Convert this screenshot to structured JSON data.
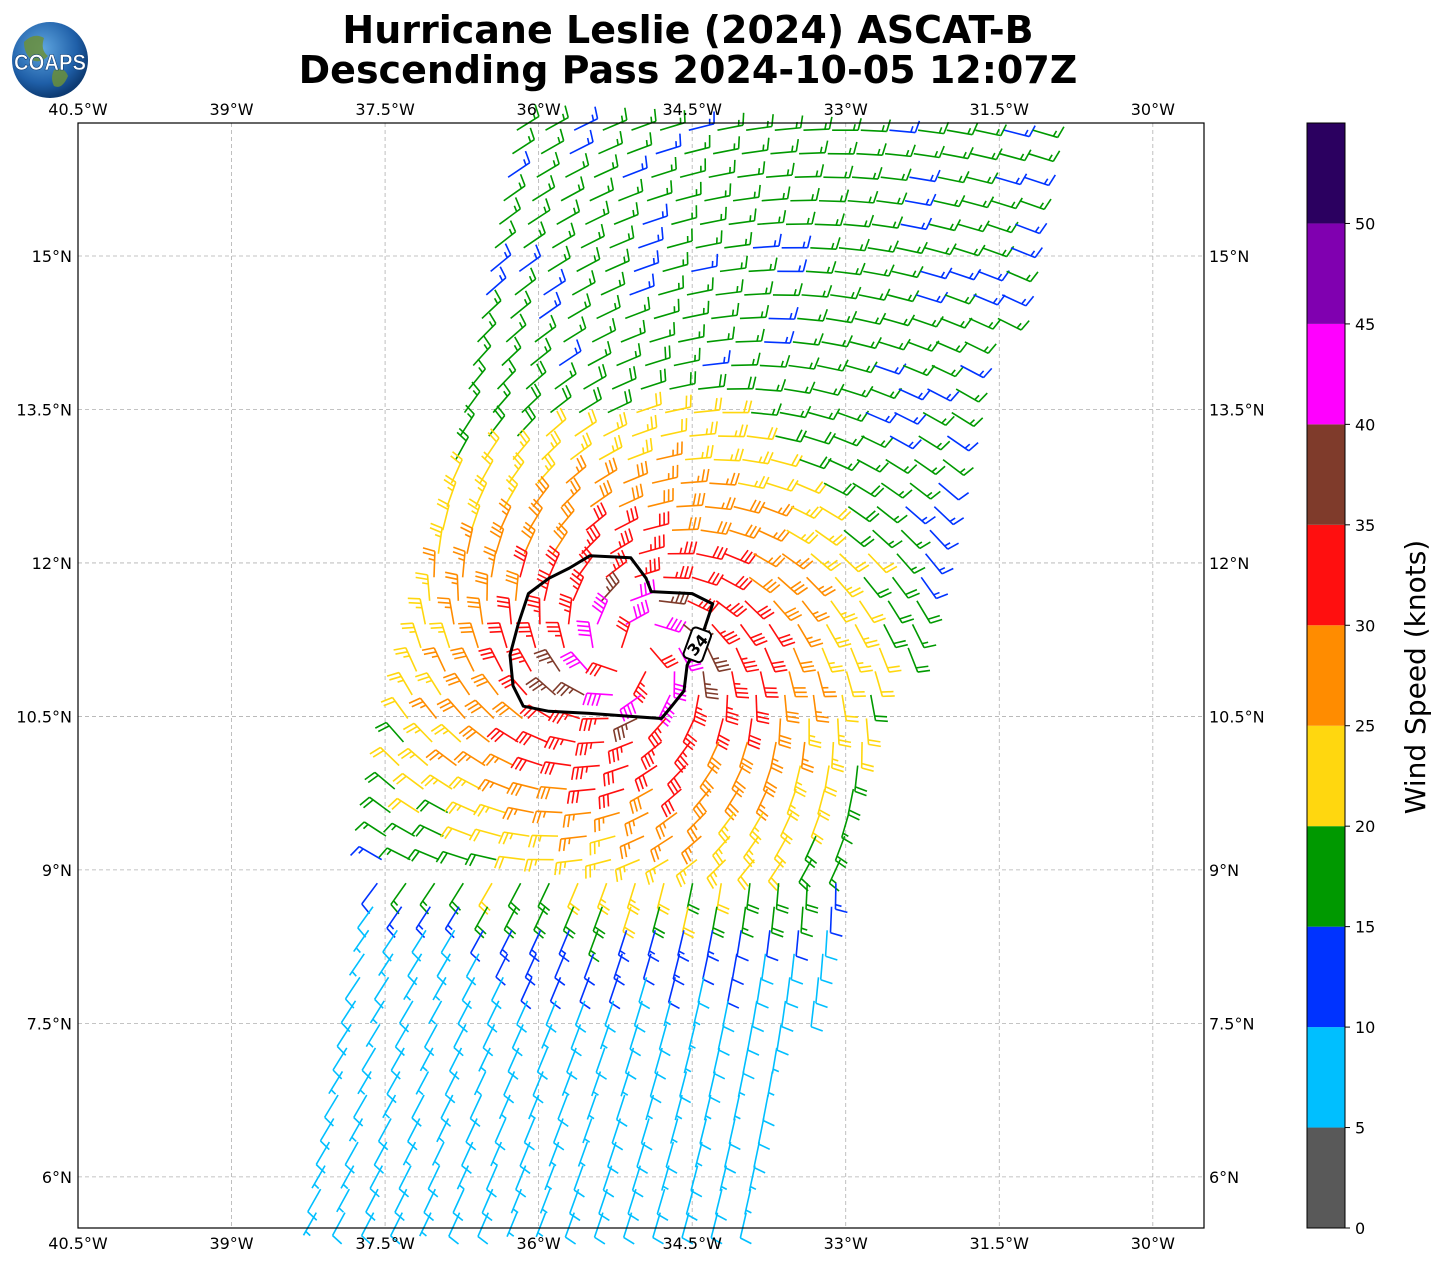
{
  "chart_data": {
    "type": "scatter",
    "title": "Hurricane Leslie (2024) ASCAT-B",
    "subtitle": "Descending Pass 2024-10-05 12:07Z",
    "logo_text": "COAPS",
    "x_ticks": [
      "40.5°W",
      "39°W",
      "37.5°W",
      "36°W",
      "34.5°W",
      "33°W",
      "31.5°W",
      "30°W"
    ],
    "x_tick_values": [
      -40.5,
      -39,
      -37.5,
      -36,
      -34.5,
      -33,
      -31.5,
      -30
    ],
    "y_ticks": [
      "6°N",
      "7.5°N",
      "9°N",
      "10.5°N",
      "12°N",
      "13.5°N",
      "15°N"
    ],
    "y_tick_values": [
      6,
      7.5,
      9,
      10.5,
      12,
      13.5,
      15
    ],
    "xlim": [
      -40.5,
      -29.5
    ],
    "ylim": [
      5.5,
      16.3
    ],
    "grid": true,
    "contour_label": "34",
    "center": {
      "lon": -35.1,
      "lat": 11.1
    },
    "swath": {
      "west_top_lon": -36.2,
      "east_top_lon": -31.0,
      "west_bottom_lon": -38.2,
      "east_bottom_lon": -33.9
    },
    "contour_34kt": [
      [
        -35.5,
        12.07
      ],
      [
        -35.1,
        12.05
      ],
      [
        -34.95,
        11.85
      ],
      [
        -34.9,
        11.72
      ],
      [
        -34.5,
        11.7
      ],
      [
        -34.3,
        11.6
      ],
      [
        -34.4,
        11.3
      ],
      [
        -34.55,
        11.0
      ],
      [
        -34.58,
        10.75
      ],
      [
        -34.7,
        10.6
      ],
      [
        -34.8,
        10.48
      ],
      [
        -35.1,
        10.5
      ],
      [
        -35.5,
        10.53
      ],
      [
        -35.9,
        10.55
      ],
      [
        -36.15,
        10.6
      ],
      [
        -36.25,
        10.8
      ],
      [
        -36.28,
        11.1
      ],
      [
        -36.2,
        11.4
      ],
      [
        -36.1,
        11.7
      ],
      [
        -35.9,
        11.85
      ],
      [
        -35.7,
        11.95
      ],
      [
        -35.5,
        12.07
      ]
    ],
    "colorbar": {
      "label": "Wind Speed (knots)",
      "ticks": [
        0,
        5,
        10,
        15,
        20,
        25,
        30,
        35,
        40,
        45,
        50
      ],
      "bounds": [
        0,
        5,
        10,
        15,
        20,
        25,
        30,
        35,
        40,
        45,
        50,
        55
      ],
      "colors": [
        "#595959",
        "#00bfff",
        "#0033ff",
        "#009900",
        "#ffd70f",
        "#ff8c00",
        "#ff0f0f",
        "#7f3b2b",
        "#ff00ff",
        "#8000b0",
        "#2b0060"
      ]
    }
  }
}
